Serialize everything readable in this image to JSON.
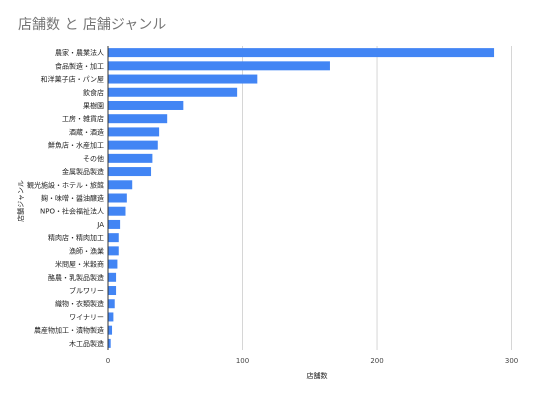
{
  "chart_data": {
    "type": "bar",
    "orientation": "horizontal",
    "title": "店舗数 と 店舗ジャンル",
    "xlabel": "店舗数",
    "ylabel": "店舗ジャンル",
    "xlim": [
      0,
      310
    ],
    "xticks": [
      "0",
      "100",
      "200",
      "300"
    ],
    "grid": true,
    "bar_color": "#4285f4",
    "categories": [
      "農家・農業法人",
      "食品製造・加工",
      "和洋菓子店・パン屋",
      "飲食店",
      "果樹園",
      "工房・雑貨店",
      "酒蔵・酒造",
      "鮮魚店・水産加工",
      "その他",
      "金属製品製造",
      "観光施設・ホテル・旅館",
      "麹・味噌・醤油醸造",
      "NPO・社会福祉法人",
      "JA",
      "精肉店・精肉加工",
      "漁師・漁業",
      "米問屋・米穀商",
      "酪農・乳製品製造",
      "ブルワリー",
      "織物・衣類製造",
      "ワイナリー",
      "農産物加工・漬物製造",
      "木工品製造"
    ],
    "values": [
      287,
      165,
      111,
      96,
      56,
      44,
      38,
      37,
      33,
      32,
      18,
      14,
      13,
      9,
      8,
      8,
      7,
      6,
      6,
      5,
      4,
      3,
      2
    ]
  }
}
